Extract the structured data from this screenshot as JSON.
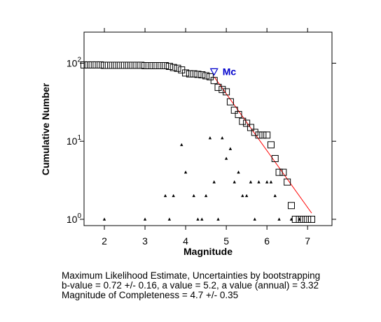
{
  "chart_data": {
    "type": "scatter",
    "xlabel": "Magnitude",
    "ylabel": "Cumulative Number",
    "xlim": [
      1.5,
      7.6
    ],
    "ylim": [
      0.83,
      250
    ],
    "yscale": "log",
    "grid": false,
    "x_ticks": [
      2,
      3,
      4,
      5,
      6,
      7
    ],
    "y_ticks": [
      {
        "value": 1,
        "base": "10",
        "exp": "0"
      },
      {
        "value": 10,
        "base": "10",
        "exp": "1"
      },
      {
        "value": 100,
        "base": "10",
        "exp": "2"
      }
    ],
    "series": [
      {
        "marker": "square",
        "points": [
          [
            1.5,
            95
          ],
          [
            1.6,
            95
          ],
          [
            1.7,
            95
          ],
          [
            1.8,
            95
          ],
          [
            1.9,
            95
          ],
          [
            2.0,
            94
          ],
          [
            2.1,
            94
          ],
          [
            2.2,
            94
          ],
          [
            2.3,
            94
          ],
          [
            2.4,
            94
          ],
          [
            2.5,
            94
          ],
          [
            2.6,
            94
          ],
          [
            2.7,
            94
          ],
          [
            2.8,
            94
          ],
          [
            2.9,
            94
          ],
          [
            3.0,
            93
          ],
          [
            3.1,
            93
          ],
          [
            3.2,
            93
          ],
          [
            3.3,
            93
          ],
          [
            3.4,
            93
          ],
          [
            3.5,
            93
          ],
          [
            3.6,
            91
          ],
          [
            3.7,
            88
          ],
          [
            3.8,
            86
          ],
          [
            3.9,
            82
          ],
          [
            4.0,
            75
          ],
          [
            4.1,
            73
          ],
          [
            4.2,
            73
          ],
          [
            4.3,
            72
          ],
          [
            4.4,
            71
          ],
          [
            4.5,
            69
          ],
          [
            4.6,
            67
          ],
          [
            4.7,
            60
          ],
          [
            4.8,
            49
          ],
          [
            4.9,
            46
          ],
          [
            5.0,
            43
          ],
          [
            5.1,
            32
          ],
          [
            5.2,
            25
          ],
          [
            5.3,
            22
          ],
          [
            5.4,
            18
          ],
          [
            5.5,
            17
          ],
          [
            5.6,
            15
          ],
          [
            5.7,
            13
          ],
          [
            5.8,
            12
          ],
          [
            5.9,
            12
          ],
          [
            6.0,
            12
          ],
          [
            6.1,
            9
          ],
          [
            6.2,
            6
          ],
          [
            6.3,
            4
          ],
          [
            6.4,
            4
          ],
          [
            6.5,
            3
          ],
          [
            6.6,
            1.5
          ],
          [
            6.7,
            1
          ],
          [
            6.8,
            1
          ],
          [
            6.9,
            1
          ],
          [
            7.0,
            1
          ],
          [
            7.1,
            1
          ]
        ]
      },
      {
        "marker": "triangle",
        "points": [
          [
            2.0,
            1
          ],
          [
            3.0,
            1
          ],
          [
            3.5,
            2
          ],
          [
            3.6,
            1
          ],
          [
            3.7,
            2
          ],
          [
            3.9,
            9
          ],
          [
            4.0,
            4
          ],
          [
            4.2,
            2
          ],
          [
            4.3,
            1
          ],
          [
            4.4,
            1
          ],
          [
            4.5,
            2
          ],
          [
            4.6,
            11
          ],
          [
            4.7,
            3
          ],
          [
            4.8,
            1
          ],
          [
            4.9,
            11
          ],
          [
            5.0,
            6
          ],
          [
            5.1,
            8
          ],
          [
            5.2,
            3
          ],
          [
            5.3,
            4
          ],
          [
            5.4,
            2
          ],
          [
            5.5,
            2
          ],
          [
            5.6,
            3
          ],
          [
            5.7,
            1
          ],
          [
            5.8,
            3
          ],
          [
            6.0,
            3
          ],
          [
            6.1,
            3
          ],
          [
            6.2,
            2
          ],
          [
            6.3,
            1
          ],
          [
            6.6,
            1
          ],
          [
            6.8,
            1
          ]
        ]
      }
    ],
    "fit_line": {
      "color": "#ff0000",
      "from": [
        4.7,
        67
      ],
      "to": [
        7.1,
        1.2
      ]
    },
    "mc_marker": {
      "label": "Mc",
      "x": 4.7,
      "y": 72,
      "color": "#0000cc"
    }
  },
  "caption": {
    "line1": "Maximum Likelihood Estimate, Uncertainties by bootstrapping",
    "line2": "b-value = 0.72 +/- 0.16,  a value = 5.2,  a value (annual) = 3.32",
    "line3": "Magnitude of Completeness = 4.7 +/- 0.35"
  }
}
